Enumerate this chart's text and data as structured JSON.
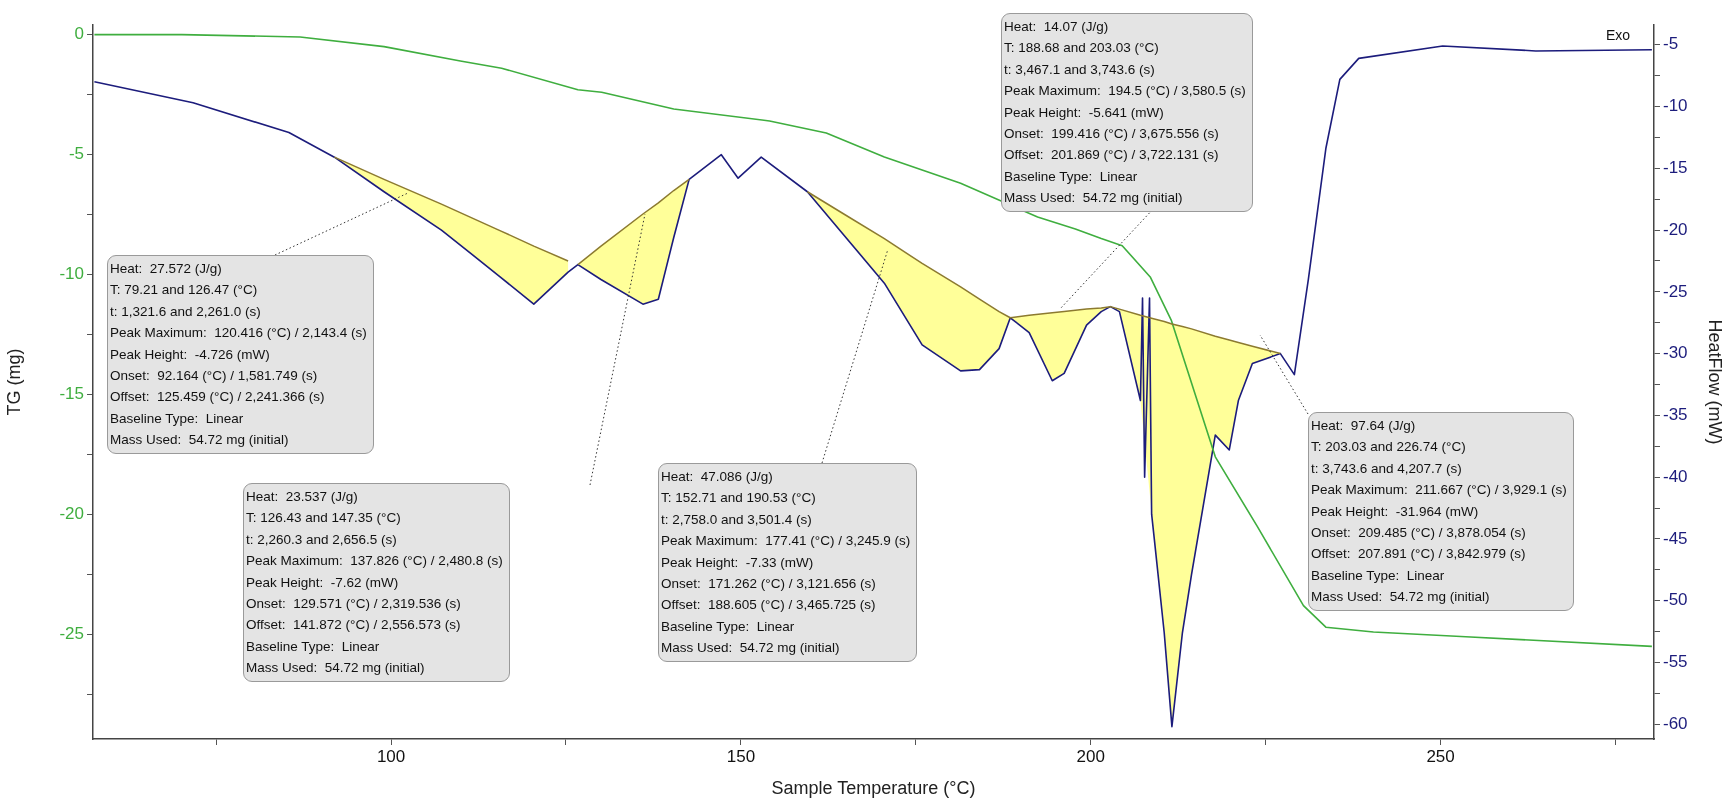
{
  "chart_data": {
    "type": "line",
    "xlabel": "Sample Temperature (°C)",
    "ylabel": "TG (mg)",
    "y2label": "HeatFlow (mW)",
    "grid": false,
    "xlim": [
      57.4,
      280.5
    ],
    "xticks": [
      {
        "value": 75,
        "label": null
      },
      100,
      {
        "value": 125,
        "label": null
      },
      150,
      {
        "value": 175,
        "label": null
      },
      200,
      {
        "value": 225,
        "label": null
      },
      250,
      {
        "value": 275,
        "label": null
      }
    ],
    "ylim": [
      -29.36,
      0.4
    ],
    "yticks": [
      0,
      {
        "value": -2.5,
        "label": null
      },
      -5,
      {
        "value": -7.5,
        "label": null
      },
      -10,
      {
        "value": -12.5,
        "label": null
      },
      -15,
      {
        "value": -17.5,
        "label": null
      },
      -20,
      {
        "value": -22.5,
        "label": null
      },
      -25,
      {
        "value": -27.5,
        "label": null
      }
    ],
    "y2lim": [
      -61.2,
      -3.4
    ],
    "y2ticks": [
      -5,
      {
        "value": -7.5,
        "label": null
      },
      -10,
      {
        "value": -12.5,
        "label": null
      },
      -15,
      {
        "value": -17.5,
        "label": null
      },
      -20,
      {
        "value": -22.5,
        "label": null
      },
      -25,
      {
        "value": -27.5,
        "label": null
      },
      -30,
      {
        "value": -32.5,
        "label": null
      },
      -35,
      {
        "value": -37.5,
        "label": null
      },
      -40,
      {
        "value": -42.5,
        "label": null
      },
      -45,
      {
        "value": -47.5,
        "label": null
      },
      -50,
      {
        "value": -52.5,
        "label": null
      },
      -55,
      {
        "value": -57.5,
        "label": null
      },
      -60
    ],
    "series": [
      {
        "color": "#3fae3f",
        "x": [
          57.6,
          70.1,
          87,
          99,
          109.9,
          115.8,
          126.7,
          130.1,
          140.4,
          154.1,
          162.2,
          170.5,
          181.4,
          192.4,
          197.8,
          201.5,
          204.5,
          208.5,
          211.5,
          217.8,
          223.8,
          230.4,
          233.6,
          240.4,
          253.6,
          280.2
        ],
        "values": [
          0,
          0,
          -0.1,
          -0.5,
          -1.1,
          -1.4,
          -2.3,
          -2.4,
          -3.1,
          -3.6,
          -4.1,
          -5.1,
          -6.2,
          -7.6,
          -8.1,
          -8.5,
          -8.8,
          -10.1,
          -11.9,
          -17.6,
          -20.5,
          -23.8,
          -24.7,
          -24.9,
          -25.1,
          -25.5
        ]
      },
      {
        "axis": "y2",
        "color": "#1c1c7c",
        "x": [
          57.6,
          71.7,
          85.4,
          91.9,
          99,
          107.2,
          115.4,
          120.4,
          125.3,
          126.7,
          130,
          136,
          138.2,
          140.4,
          142.6,
          147.2,
          149.6,
          152.9,
          159.5,
          165,
          170.5,
          175.9,
          181.4,
          184.1,
          186.9,
          188.5,
          191.2,
          194.5,
          196.2,
          199.4,
          201.5,
          202.8,
          204.1,
          207.1,
          207.4,
          207.7,
          208.4,
          208.7,
          209.1,
          210.5,
          211.6,
          213.1,
          214.4,
          217.8,
          219.8,
          221.1,
          223.1,
          227.1,
          229.1,
          231.1,
          233.6,
          235.6,
          238.3,
          250.3,
          263.6,
          280.2
        ],
        "values": [
          -8,
          -9.7,
          -12.1,
          -14.1,
          -16.9,
          -20,
          -23.7,
          -26,
          -23.4,
          -22.8,
          -24,
          -26,
          -25.6,
          -20.6,
          -15.9,
          -13.9,
          -15.8,
          -14.1,
          -16.9,
          -20.6,
          -24.3,
          -29.3,
          -31.4,
          -31.3,
          -29.6,
          -27.1,
          -28.3,
          -32.2,
          -31.6,
          -27.7,
          -26.6,
          -26.2,
          -26.6,
          -33.8,
          -25.5,
          -40,
          -25.5,
          -43,
          -45.1,
          -52.6,
          -60.2,
          -52.6,
          -47.9,
          -36.6,
          -37.8,
          -33.8,
          -30.8,
          -30,
          -31.7,
          -24,
          -13.4,
          -7.8,
          -6.1,
          -5.1,
          -5.5,
          -5.4
        ]
      },
      {
        "type": "line",
        "axis": "y2",
        "color": "#8c7a30",
        "x": [
          91.9,
          99,
          107.2,
          115.4,
          120.4,
          125.3
        ],
        "values": [
          -14.1,
          -15.9,
          -17.9,
          -20,
          -21.3,
          -22.5
        ],
        "lower": [
          -14.1,
          -16.9,
          -20,
          -23.7,
          -26,
          -23.4
        ],
        "upper": [
          -14.1,
          -15.9,
          -17.9,
          -20,
          -21.3,
          -22.5
        ]
      },
      {
        "type": "line",
        "axis": "y2",
        "color": "#8c7a30",
        "x": [
          126.7,
          130,
          136,
          138.2,
          140.4,
          142.6
        ],
        "values": [
          -22.8,
          -21.3,
          -18.7,
          -17.8,
          -16.8,
          -15.9
        ],
        "lower": [
          -22.8,
          -24,
          -26,
          -25.6,
          -20.6,
          -15.9
        ],
        "upper": [
          -22.8,
          -21.3,
          -18.7,
          -17.8,
          -16.8,
          -15.9
        ]
      },
      {
        "type": "line",
        "axis": "y2",
        "color": "#8c7a30",
        "x": [
          159.5,
          165,
          170.5,
          175.9,
          181.4,
          184.1,
          186.9,
          188.5,
          191.2,
          194.5,
          196.2,
          199.4,
          201.5,
          202.8,
          204.1,
          207.1,
          209.1,
          210.5,
          211.6,
          213.1,
          214.4,
          217.8,
          219.8,
          221.1,
          223.1,
          227.1
        ],
        "values": [
          -16.9,
          -18.8,
          -20.7,
          -22.7,
          -24.6,
          -25.6,
          -26.6,
          -27.1,
          -26.9,
          -26.7,
          -26.6,
          -26.4,
          -26.3,
          -26.2,
          -26.4,
          -26.9,
          -27.2,
          -27.4,
          -27.6,
          -27.8,
          -28,
          -28.6,
          -28.9,
          -29.1,
          -29.4,
          -30
        ],
        "lower": [
          -16.9,
          -20.6,
          -24.3,
          -29.3,
          -31.4,
          -31.3,
          -29.6,
          -27.1,
          -28.3,
          -32.2,
          -31.6,
          -27.7,
          -26.6,
          -26.2,
          -26.6,
          -33.8,
          -45.1,
          -52.6,
          -60.2,
          -52.6,
          -47.9,
          -36.6,
          -37.8,
          -33.8,
          -30.8,
          -30
        ],
        "upper": [
          -16.9,
          -18.8,
          -20.7,
          -22.7,
          -24.6,
          -25.6,
          -26.6,
          -27.1,
          -26.9,
          -26.7,
          -26.6,
          -26.4,
          -26.3,
          -26.2,
          -26.4,
          -26.9,
          -27.2,
          -27.4,
          -27.6,
          -27.8,
          -28,
          -28.6,
          -28.9,
          -29.1,
          -29.4,
          -30
        ]
      }
    ],
    "annotations": [
      "Heat:  27.572 (J/g)\nT: 79.21 and 126.47 (°C)\nt: 1,321.6 and 2,261.0 (s)\nPeak Maximum:  120.416 (°C) / 2,143.4 (s)\nPeak Height:  -4.726 (mW)\nOnset:  92.164 (°C) / 1,581.749 (s)\nOffset:  125.459 (°C) / 2,241.366 (s)\nBaseline Type:  Linear\nMass Used:  54.72 mg (initial)",
      "Heat:  23.537 (J/g)\nT: 126.43 and 147.35 (°C)\nt: 2,260.3 and 2,656.5 (s)\nPeak Maximum:  137.826 (°C) / 2,480.8 (s)\nPeak Height:  -7.62 (mW)\nOnset:  129.571 (°C) / 2,319.536 (s)\nOffset:  141.872 (°C) / 2,556.573 (s)\nBaseline Type:  Linear\nMass Used:  54.72 mg (initial)",
      "Heat:  47.086 (J/g)\nT: 152.71 and 190.53 (°C)\nt: 2,758.0 and 3,501.4 (s)\nPeak Maximum:  177.41 (°C) / 3,245.9 (s)\nPeak Height:  -7.33 (mW)\nOnset:  171.262 (°C) / 3,121.656 (s)\nOffset:  188.605 (°C) / 3,465.725 (s)\nBaseline Type:  Linear\nMass Used:  54.72 mg (initial)",
      "Heat:  14.07 (J/g)\nT: 188.68 and 203.03 (°C)\nt: 3,467.1 and 3,743.6 (s)\nPeak Maximum:  194.5 (°C) / 3,580.5 (s)\nPeak Height:  -5.641 (mW)\nOnset:  199.416 (°C) / 3,675.556 (s)\nOffset:  201.869 (°C) / 3,722.131 (s)\nBaseline Type:  Linear\nMass Used:  54.72 mg (initial)",
      "Heat:  97.64 (J/g)\nT: 203.03 and 226.74 (°C)\nt: 3,743.6 and 4,207.7 (s)\nPeak Maximum:  211.667 (°C) / 3,929.1 (s)\nPeak Height:  -31.964 (mW)\nOnset:  209.485 (°C) / 3,878.054 (s)\nOffset:  207.891 (°C) / 3,842.979 (s)\nBaseline Type:  Linear\nMass Used:  54.72 mg (initial)",
      "Exo"
    ]
  }
}
